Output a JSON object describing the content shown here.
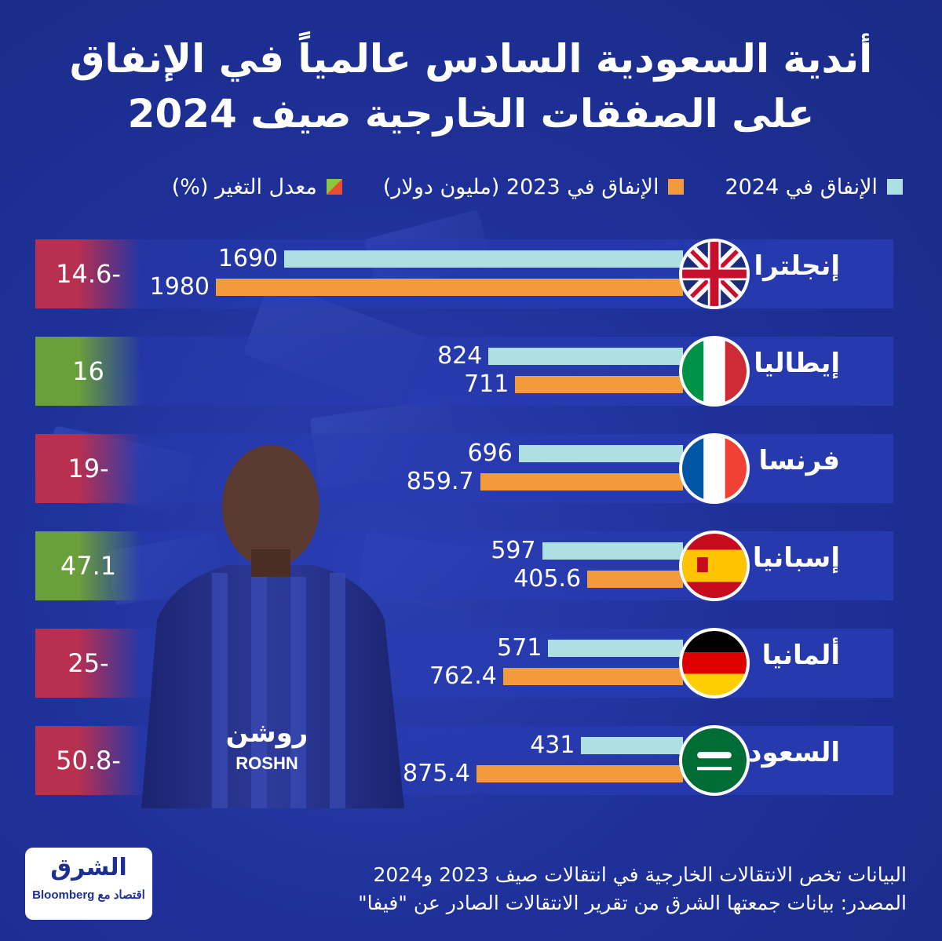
{
  "title": {
    "line1": "أندية السعودية السادس عالمياً في الإنفاق",
    "line2": "على الصفقات الخارجية صيف 2024"
  },
  "legend": {
    "spend_2024": "الإنفاق في 2024",
    "spend_2023": "الإنفاق في 2023 (مليون دولار)",
    "change": "معدل التغير (%)"
  },
  "colors": {
    "bar_2024": "#aee0e3",
    "bar_2023": "#f39a3c",
    "change_negative": "#b8304f",
    "change_positive": "#6aa03a",
    "background": "#1d2f94"
  },
  "chart_data": {
    "type": "bar",
    "orientation": "horizontal",
    "categories": [
      "إنجلترا",
      "إيطاليا",
      "فرنسا",
      "إسبانيا",
      "ألمانيا",
      "السعودية"
    ],
    "series": [
      {
        "name": "الإنفاق في 2024",
        "values": [
          1690,
          824,
          696,
          597,
          571,
          431
        ],
        "labels": [
          "1690",
          "824",
          "696",
          "597",
          "571",
          "431"
        ]
      },
      {
        "name": "الإنفاق في 2023 (مليون دولار)",
        "values": [
          1980,
          711,
          859.7,
          405.6,
          762.4,
          875.4
        ],
        "labels": [
          "1980",
          "711",
          "859.7",
          "405.6",
          "762.4",
          "875.4"
        ]
      }
    ],
    "change_pct": {
      "name": "معدل التغير (%)",
      "values": [
        -14.6,
        16,
        -19,
        47.1,
        -25,
        -50.8
      ],
      "labels": [
        "14.6-",
        "16",
        "19-",
        "47.1",
        "25-",
        "50.8-"
      ]
    },
    "flags": [
      "uk-flag-icon",
      "italy-flag-icon",
      "france-flag-icon",
      "spain-flag-icon",
      "germany-flag-icon",
      "saudi-flag-icon"
    ],
    "legend_position": "top",
    "grid": false
  },
  "player": {
    "shirt_text": "روشن",
    "shirt_text_latin": "ROSHN"
  },
  "notes": {
    "line1": "البيانات تخص الانتقالات الخارجية في انتقالات صيف 2023 و2024",
    "line2": "المصدر: بيانات جمعتها الشرق من تقرير الانتقالات الصادر عن \"فيفا\""
  },
  "logo": {
    "main": "الشرق",
    "sub": "اقتصاد",
    "partner_prefix": "مع",
    "partner": "Bloomberg"
  }
}
